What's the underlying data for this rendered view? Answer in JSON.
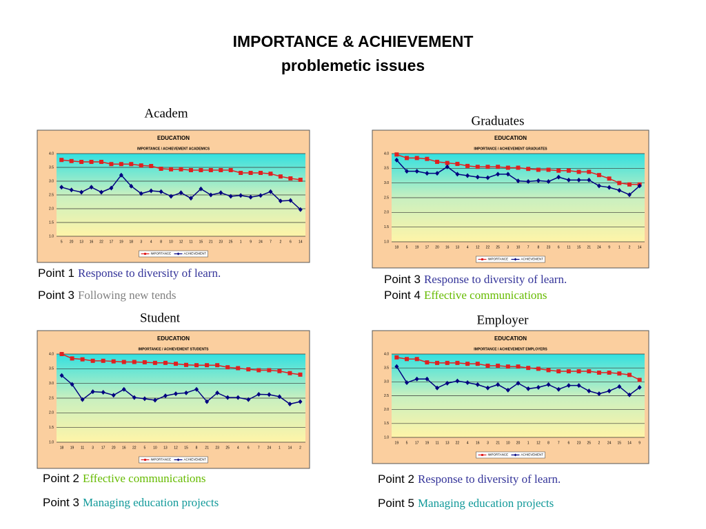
{
  "header": {
    "title": "IMPORTANCE & ACHIEVEMENT",
    "subtitle": "problemetic issues"
  },
  "panels": [
    {
      "heading": "Academ",
      "notes": [
        {
          "point": "Point 1",
          "text": "Response  to diversity of learn.",
          "color": "#333399"
        },
        {
          "point": "Point 3",
          "text": "Following new tends",
          "color": "#808080"
        }
      ]
    },
    {
      "heading": "Graduates",
      "notes": [
        {
          "point": "Point 3",
          "text": "Response to diversity of learn.",
          "color": "#333399"
        },
        {
          "point": "Point 4",
          "text": "Effective communications",
          "color": "#66bb00"
        }
      ]
    },
    {
      "heading": "Student",
      "notes": [
        {
          "point": "Point 2",
          "text": "Effective communications",
          "color": "#66bb00"
        },
        {
          "point": "Point 3",
          "text": "Managing education projects",
          "color": "#119999"
        }
      ]
    },
    {
      "heading": "Employer",
      "notes": [
        {
          "point": "Point 2",
          "text": "Response to diversity of  learn.",
          "color": "#333399"
        },
        {
          "point": "Point 5",
          "text": "Managing education projects",
          "color": "#119999"
        }
      ]
    }
  ],
  "chart_data": [
    {
      "type": "line",
      "title": "EDUCATION",
      "subtitle": "IMPORTANCE / ACHIEVEMENT ACADEMICS",
      "categories": [
        "5",
        "20",
        "13",
        "16",
        "22",
        "17",
        "19",
        "18",
        "3",
        "4",
        "8",
        "10",
        "12",
        "11",
        "15",
        "21",
        "23",
        "25",
        "1",
        "9",
        "24",
        "7",
        "2",
        "6",
        "14"
      ],
      "series": [
        {
          "name": "IMPORTANCE",
          "color": "#e02020",
          "marker": "square",
          "values": [
            3.77,
            3.73,
            3.7,
            3.7,
            3.7,
            3.62,
            3.62,
            3.62,
            3.57,
            3.55,
            3.45,
            3.43,
            3.43,
            3.4,
            3.4,
            3.4,
            3.4,
            3.4,
            3.3,
            3.3,
            3.3,
            3.27,
            3.17,
            3.1,
            3.05
          ]
        },
        {
          "name": "ACHIEVEMENT",
          "color": "#000080",
          "marker": "diamond",
          "values": [
            2.78,
            2.68,
            2.6,
            2.78,
            2.6,
            2.75,
            3.22,
            2.82,
            2.55,
            2.65,
            2.62,
            2.45,
            2.58,
            2.38,
            2.72,
            2.5,
            2.58,
            2.45,
            2.48,
            2.42,
            2.48,
            2.62,
            2.28,
            2.3,
            1.97
          ]
        }
      ],
      "ylim": [
        1,
        4
      ],
      "yticks": [
        {
          "value": 1,
          "label": "1.0"
        },
        {
          "value": 1.5,
          "label": "1.5"
        },
        {
          "value": 2,
          "label": "2.0"
        },
        {
          "value": 2.5,
          "label": "2.5"
        },
        {
          "value": 3,
          "label": "3.0"
        },
        {
          "value": 3.5,
          "label": "3.5"
        },
        {
          "value": 4,
          "label": "4.0"
        }
      ],
      "grid": true,
      "legend": "bottom"
    },
    {
      "type": "line",
      "title": "EDUCATION",
      "subtitle": "IMPORTANCE / ACHIEVEMENT GRADUATES",
      "categories": [
        "18",
        "5",
        "19",
        "17",
        "20",
        "16",
        "13",
        "4",
        "12",
        "22",
        "25",
        "3",
        "10",
        "7",
        "8",
        "23",
        "6",
        "11",
        "15",
        "21",
        "24",
        "9",
        "1",
        "2",
        "14"
      ],
      "series": [
        {
          "name": "IMPORTANCE",
          "color": "#e02020",
          "marker": "square",
          "values": [
            3.97,
            3.85,
            3.85,
            3.82,
            3.72,
            3.68,
            3.65,
            3.58,
            3.55,
            3.55,
            3.55,
            3.52,
            3.52,
            3.48,
            3.45,
            3.45,
            3.42,
            3.42,
            3.38,
            3.38,
            3.27,
            3.15,
            3.0,
            2.95,
            2.95
          ]
        },
        {
          "name": "ACHIEVEMENT",
          "color": "#000080",
          "marker": "diamond",
          "values": [
            3.78,
            3.4,
            3.4,
            3.33,
            3.33,
            3.55,
            3.3,
            3.25,
            3.2,
            3.18,
            3.3,
            3.3,
            3.07,
            3.05,
            3.08,
            3.05,
            3.2,
            3.1,
            3.1,
            3.1,
            2.9,
            2.85,
            2.75,
            2.6,
            2.9
          ]
        }
      ],
      "ylim": [
        1,
        4
      ],
      "yticks": [
        {
          "value": 1,
          "label": "1.0"
        },
        {
          "value": 1.5,
          "label": "1.5"
        },
        {
          "value": 2,
          "label": "2.0"
        },
        {
          "value": 2.5,
          "label": "2.5"
        },
        {
          "value": 3,
          "label": "3.0"
        },
        {
          "value": 3.5,
          "label": "3.5"
        },
        {
          "value": 4,
          "label": "4.0"
        }
      ],
      "grid": true,
      "legend": "bottom"
    },
    {
      "type": "line",
      "title": "EDUCATION",
      "subtitle": "IMPORTANCE / ACHIEVEMENT STUDENTS",
      "categories": [
        "18",
        "19",
        "11",
        "3",
        "17",
        "20",
        "16",
        "22",
        "5",
        "10",
        "13",
        "12",
        "15",
        "8",
        "21",
        "23",
        "25",
        "4",
        "6",
        "7",
        "24",
        "1",
        "14",
        "2"
      ],
      "series": [
        {
          "name": "IMPORTANCE",
          "color": "#e02020",
          "marker": "square",
          "values": [
            4.0,
            3.85,
            3.82,
            3.77,
            3.77,
            3.75,
            3.73,
            3.73,
            3.72,
            3.7,
            3.7,
            3.67,
            3.63,
            3.62,
            3.62,
            3.62,
            3.55,
            3.52,
            3.48,
            3.45,
            3.45,
            3.42,
            3.35,
            3.3
          ]
        },
        {
          "name": "ACHIEVEMENT",
          "color": "#000080",
          "marker": "diamond",
          "values": [
            3.27,
            2.97,
            2.45,
            2.72,
            2.7,
            2.6,
            2.8,
            2.52,
            2.48,
            2.43,
            2.58,
            2.65,
            2.68,
            2.8,
            2.38,
            2.68,
            2.52,
            2.52,
            2.45,
            2.63,
            2.62,
            2.55,
            2.3,
            2.38
          ]
        }
      ],
      "ylim": [
        1,
        4
      ],
      "yticks": [
        {
          "value": 1,
          "label": "1.0"
        },
        {
          "value": 1.5,
          "label": "1.5"
        },
        {
          "value": 2,
          "label": "2.0"
        },
        {
          "value": 2.5,
          "label": "2.5"
        },
        {
          "value": 3,
          "label": "3.0"
        },
        {
          "value": 3.5,
          "label": "3.5"
        },
        {
          "value": 4,
          "label": "4.0"
        }
      ],
      "grid": true,
      "legend": "bottom"
    },
    {
      "type": "line",
      "title": "EDUCATION",
      "subtitle": "IMPORTANCE / ACHIEVEMENT EMPLOYERS",
      "categories": [
        "19",
        "5",
        "17",
        "19",
        "11",
        "13",
        "22",
        "4",
        "16",
        "3",
        "21",
        "10",
        "20",
        "1",
        "12",
        "8",
        "7",
        "6",
        "23",
        "25",
        "2",
        "24",
        "15",
        "14",
        "9"
      ],
      "series": [
        {
          "name": "IMPORTANCE",
          "color": "#e02020",
          "marker": "square",
          "values": [
            3.88,
            3.82,
            3.82,
            3.7,
            3.68,
            3.68,
            3.68,
            3.65,
            3.65,
            3.58,
            3.58,
            3.55,
            3.55,
            3.5,
            3.47,
            3.42,
            3.38,
            3.38,
            3.38,
            3.38,
            3.33,
            3.33,
            3.3,
            3.25,
            3.07
          ]
        },
        {
          "name": "ACHIEVEMENT",
          "color": "#000080",
          "marker": "diamond",
          "values": [
            3.55,
            2.97,
            3.1,
            3.1,
            2.78,
            2.95,
            3.03,
            2.97,
            2.9,
            2.78,
            2.9,
            2.7,
            2.95,
            2.75,
            2.8,
            2.9,
            2.73,
            2.87,
            2.87,
            2.67,
            2.57,
            2.67,
            2.83,
            2.53,
            2.8
          ]
        }
      ],
      "ylim": [
        1,
        4
      ],
      "yticks": [
        {
          "value": 1,
          "label": "1.0"
        },
        {
          "value": 1.5,
          "label": "1.5"
        },
        {
          "value": 2,
          "label": "2.0"
        },
        {
          "value": 2.5,
          "label": "2.5"
        },
        {
          "value": 3,
          "label": "3.0"
        },
        {
          "value": 3.5,
          "label": "3.5"
        },
        {
          "value": 4,
          "label": "4.0"
        }
      ],
      "grid": true,
      "legend": "bottom"
    }
  ]
}
